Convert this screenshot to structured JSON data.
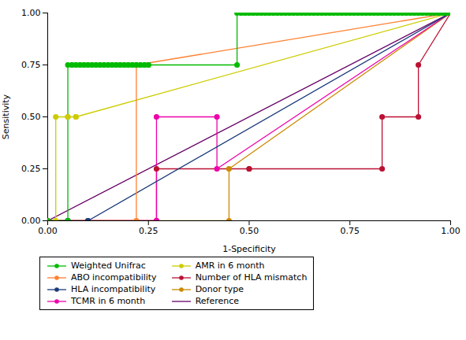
{
  "chart_data": {
    "type": "line",
    "xlabel": "1-Specificity",
    "ylabel": "Sensitivity",
    "xlim": [
      0.0,
      1.0
    ],
    "ylim": [
      0.0,
      1.0
    ],
    "xticks": [
      {
        "value": 0.0,
        "label": "0.00"
      },
      0.25,
      {
        "value": 0.5,
        "label": "0.50"
      },
      0.75,
      {
        "value": 1.0,
        "label": "1.00"
      }
    ],
    "yticks": [
      {
        "value": 0.0,
        "label": "0.00"
      },
      0.25,
      {
        "value": 0.5,
        "label": "0.50"
      },
      0.75,
      {
        "value": 1.0,
        "label": "1.00"
      }
    ],
    "grid": false,
    "legend": "bottom",
    "series": [
      {
        "name": "Weighted Unifrac",
        "color": "#00bb00",
        "marker": "circle",
        "x": [
          0.0,
          0.05,
          0.05,
          0.06,
          0.06,
          0.07,
          0.07,
          0.08,
          0.08,
          0.09,
          0.09,
          0.1,
          0.1,
          0.11,
          0.11,
          0.12,
          0.12,
          0.13,
          0.13,
          0.14,
          0.14,
          0.15,
          0.15,
          0.16,
          0.16,
          0.17,
          0.17,
          0.18,
          0.18,
          0.19,
          0.19,
          0.2,
          0.2,
          0.21,
          0.21,
          0.22,
          0.22,
          0.23,
          0.23,
          0.24,
          0.24,
          0.25,
          0.25,
          0.47,
          0.47,
          0.48,
          0.48,
          0.49,
          0.49,
          0.5,
          0.5,
          0.51,
          0.51,
          0.52,
          0.52,
          0.53,
          0.53,
          0.54,
          0.54,
          0.55,
          0.55,
          0.56,
          0.56,
          0.57,
          0.57,
          0.58,
          0.58,
          0.59,
          0.59,
          0.6,
          0.6,
          0.61,
          0.61,
          0.62,
          0.62,
          0.63,
          0.63,
          0.64,
          0.64,
          0.65,
          0.65,
          0.66,
          0.66,
          0.67,
          0.67,
          0.68,
          0.68,
          0.69,
          0.69,
          0.7,
          0.7,
          0.71,
          0.71,
          0.72,
          0.72,
          0.73,
          0.73,
          0.74,
          0.74,
          0.75,
          0.75,
          0.76,
          0.76,
          0.77,
          0.77,
          0.78,
          0.78,
          0.79,
          0.79,
          0.8,
          0.8,
          0.81,
          0.81,
          0.82,
          0.82,
          0.83,
          0.83,
          0.84,
          0.84,
          0.85,
          0.85,
          0.86,
          0.86,
          0.87,
          0.87,
          0.88,
          0.88,
          0.89,
          0.89,
          0.9,
          0.9,
          0.91,
          0.91,
          0.92,
          0.92,
          0.93,
          0.93,
          0.94,
          0.94,
          0.95,
          0.95,
          0.96,
          0.96,
          0.97,
          0.97,
          0.98,
          0.98,
          0.99,
          0.99,
          1.0
        ],
        "values": [
          0.0,
          0.0,
          0.75,
          0.75,
          0.75,
          0.75,
          0.75,
          0.75,
          0.75,
          0.75,
          0.75,
          0.75,
          0.75,
          0.75,
          0.75,
          0.75,
          0.75,
          0.75,
          0.75,
          0.75,
          0.75,
          0.75,
          0.75,
          0.75,
          0.75,
          0.75,
          0.75,
          0.75,
          0.75,
          0.75,
          0.75,
          0.75,
          0.75,
          0.75,
          0.75,
          0.75,
          0.75,
          0.75,
          0.75,
          0.75,
          0.75,
          0.75,
          0.75,
          0.75,
          1.0,
          1.0,
          1.0,
          1.0,
          1.0,
          1.0,
          1.0,
          1.0,
          1.0,
          1.0,
          1.0,
          1.0,
          1.0,
          1.0,
          1.0,
          1.0,
          1.0,
          1.0,
          1.0,
          1.0,
          1.0,
          1.0,
          1.0,
          1.0,
          1.0,
          1.0,
          1.0,
          1.0,
          1.0,
          1.0,
          1.0,
          1.0,
          1.0,
          1.0,
          1.0,
          1.0,
          1.0,
          1.0,
          1.0,
          1.0,
          1.0,
          1.0,
          1.0,
          1.0,
          1.0,
          1.0,
          1.0,
          1.0,
          1.0,
          1.0,
          1.0,
          1.0,
          1.0,
          1.0,
          1.0,
          1.0,
          1.0,
          1.0,
          1.0,
          1.0,
          1.0,
          1.0,
          1.0,
          1.0,
          1.0,
          1.0,
          1.0,
          1.0,
          1.0,
          1.0,
          1.0,
          1.0,
          1.0,
          1.0,
          1.0,
          1.0,
          1.0,
          1.0,
          1.0,
          1.0,
          1.0,
          1.0,
          1.0,
          1.0,
          1.0,
          1.0,
          1.0,
          1.0,
          1.0,
          1.0,
          1.0,
          1.0,
          1.0,
          1.0,
          1.0,
          1.0,
          1.0,
          1.0,
          1.0,
          1.0,
          1.0,
          1.0,
          1.0,
          1.0,
          1.0,
          1.0
        ]
      },
      {
        "name": "ABO incompatibility",
        "color": "#ff8030",
        "marker": "circle",
        "x": [
          0.0,
          0.22,
          0.22,
          1.0
        ],
        "values": [
          0.0,
          0.0,
          0.75,
          1.0
        ]
      },
      {
        "name": "HLA incompatibility",
        "color": "#1a3a7a",
        "marker": "circle",
        "x": [
          0.0,
          0.05,
          0.05,
          0.1,
          0.1,
          1.0
        ],
        "values": [
          0.0,
          0.0,
          0.0,
          0.0,
          0.0,
          1.0
        ]
      },
      {
        "name": "TCMR in 6 month",
        "color": "#ee00aa",
        "marker": "circle",
        "x": [
          0.0,
          0.27,
          0.27,
          0.42,
          0.42,
          1.0
        ],
        "values": [
          0.0,
          0.0,
          0.5,
          0.5,
          0.25,
          1.0
        ]
      },
      {
        "name": "AMR in 6 month",
        "color": "#cccc00",
        "marker": "circle",
        "x": [
          0.0,
          0.02,
          0.02,
          0.05,
          0.05,
          0.07,
          0.07,
          1.0
        ],
        "values": [
          0.0,
          0.0,
          0.5,
          0.5,
          0.5,
          0.5,
          0.5,
          1.0
        ]
      },
      {
        "name": "Number of HLA mismatch",
        "color": "#bb1133",
        "marker": "circle",
        "x": [
          0.0,
          0.27,
          0.27,
          0.5,
          0.5,
          0.83,
          0.83,
          0.92,
          0.92,
          1.0
        ],
        "values": [
          0.0,
          0.0,
          0.25,
          0.25,
          0.25,
          0.25,
          0.5,
          0.5,
          0.75,
          1.0
        ]
      },
      {
        "name": "Donor type",
        "color": "#cc8800",
        "marker": "circle",
        "x": [
          0.0,
          0.45,
          0.45,
          1.0
        ],
        "values": [
          0.0,
          0.0,
          0.25,
          1.0
        ]
      },
      {
        "name": "Reference",
        "color": "#660066",
        "marker": "none",
        "x": [
          0.0,
          1.0
        ],
        "values": [
          0.0,
          1.0
        ]
      }
    ]
  }
}
